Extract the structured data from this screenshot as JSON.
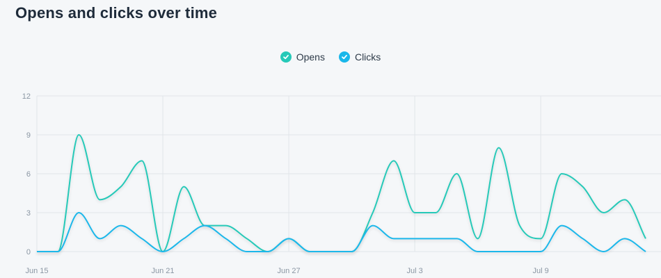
{
  "page": {
    "title": "Opens and clicks over time"
  },
  "legend": {
    "items": [
      {
        "label": "Opens",
        "color": "#26c9b8",
        "icon": "check-icon"
      },
      {
        "label": "Clicks",
        "color": "#1ab7ea",
        "icon": "check-icon"
      }
    ]
  },
  "chart_data": {
    "type": "line",
    "x": [
      "Jun 15",
      "Jun 16",
      "Jun 17",
      "Jun 18",
      "Jun 19",
      "Jun 20",
      "Jun 21",
      "Jun 22",
      "Jun 23",
      "Jun 24",
      "Jun 25",
      "Jun 26",
      "Jun 27",
      "Jun 28",
      "Jun 29",
      "Jun 30",
      "Jul 1",
      "Jul 2",
      "Jul 3",
      "Jul 4",
      "Jul 5",
      "Jul 6",
      "Jul 7",
      "Jul 8",
      "Jul 9",
      "Jul 10",
      "Jul 11",
      "Jul 12",
      "Jul 13",
      "Jul 14"
    ],
    "xticks": [
      "Jun 15",
      "Jun 21",
      "Jun 27",
      "Jul 3",
      "Jul 9"
    ],
    "yticks": [
      0,
      3,
      6,
      9,
      12
    ],
    "ylim": [
      0,
      12
    ],
    "grid": true,
    "legend_position": "top-center",
    "series": [
      {
        "name": "Opens",
        "color": "#26c9b8",
        "values": [
          0,
          0,
          9,
          4,
          5,
          7,
          0,
          5,
          2,
          2,
          1,
          0,
          1,
          0,
          0,
          0,
          3,
          7,
          3,
          3,
          6,
          1,
          8,
          2,
          1,
          6,
          5,
          3,
          4,
          1
        ]
      },
      {
        "name": "Clicks",
        "color": "#1ab7ea",
        "values": [
          0,
          0,
          3,
          1,
          2,
          1,
          0,
          1,
          2,
          1,
          0,
          0,
          1,
          0,
          0,
          0,
          2,
          1,
          1,
          1,
          1,
          0,
          0,
          0,
          0,
          2,
          1,
          0,
          1,
          0
        ]
      }
    ]
  }
}
